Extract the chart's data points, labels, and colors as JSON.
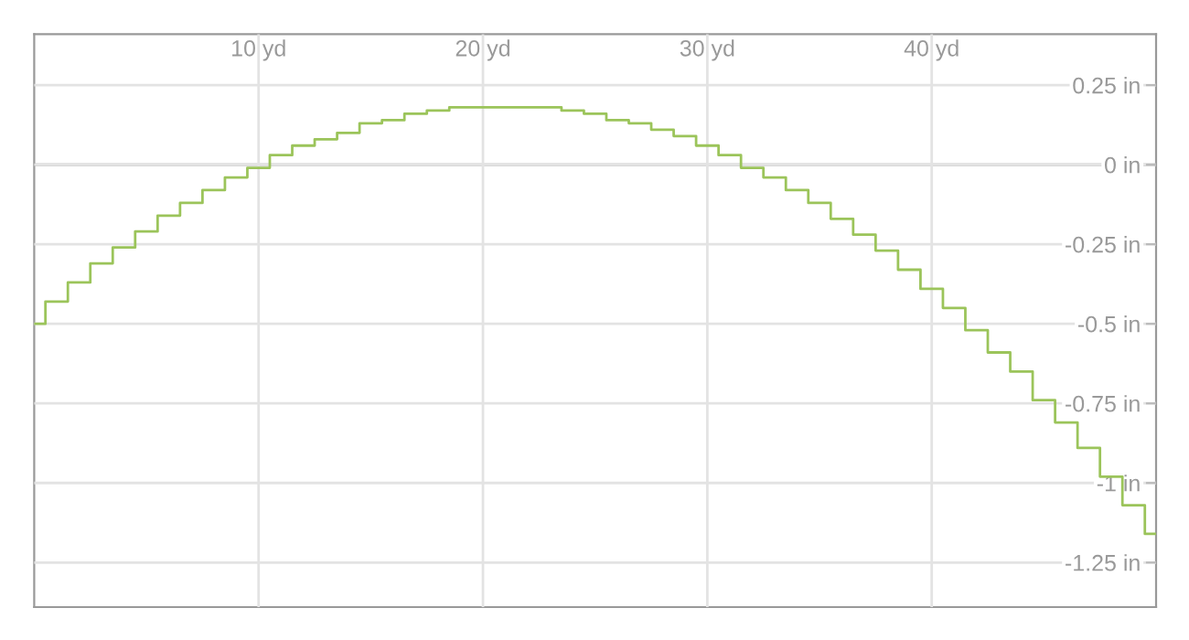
{
  "chart_data": {
    "type": "step",
    "x": [
      0,
      1,
      2,
      3,
      4,
      5,
      6,
      7,
      8,
      9,
      10,
      11,
      12,
      13,
      14,
      15,
      16,
      17,
      18,
      19,
      20,
      21,
      22,
      23,
      24,
      25,
      26,
      27,
      28,
      29,
      30,
      31,
      32,
      33,
      34,
      35,
      36,
      37,
      38,
      39,
      40,
      41,
      42,
      43,
      44,
      45,
      46,
      47,
      48,
      49,
      50
    ],
    "series": [
      {
        "color": "#9bc45a",
        "values": [
          -0.5,
          -0.43,
          -0.37,
          -0.31,
          -0.26,
          -0.21,
          -0.16,
          -0.12,
          -0.08,
          -0.04,
          -0.01,
          0.03,
          0.06,
          0.08,
          0.1,
          0.13,
          0.14,
          0.16,
          0.17,
          0.18,
          0.18,
          0.18,
          0.18,
          0.18,
          0.17,
          0.16,
          0.14,
          0.13,
          0.11,
          0.09,
          0.06,
          0.03,
          -0.01,
          -0.04,
          -0.08,
          -0.12,
          -0.17,
          -0.22,
          -0.27,
          -0.33,
          -0.39,
          -0.45,
          -0.52,
          -0.59,
          -0.65,
          -0.74,
          -0.81,
          -0.89,
          -0.98,
          -1.07,
          -1.16
        ]
      }
    ],
    "xlim": [
      0,
      50
    ],
    "xticks": [
      {
        "value": 10,
        "label": "10 yd"
      },
      {
        "value": 20,
        "label": "20 yd"
      },
      {
        "value": 30,
        "label": "30 yd"
      },
      {
        "value": 40,
        "label": "40 yd"
      }
    ],
    "ylim": [
      -1.39,
      0.41
    ],
    "yticks": [
      {
        "value": 0.25,
        "label": "0.25 in"
      },
      {
        "value": 0,
        "label": "0 in"
      },
      {
        "value": -0.25,
        "label": "-0.25 in"
      },
      {
        "value": -0.5,
        "label": "-0.5 in"
      },
      {
        "value": -0.75,
        "label": "-0.75 in"
      },
      {
        "value": -1,
        "label": "-1 in"
      },
      {
        "value": -1.25,
        "label": "-1.25 in"
      }
    ],
    "ref_lines": [
      {
        "axis": "y",
        "value": 0,
        "color": "#999999"
      }
    ],
    "grid": true,
    "line_style": "solid"
  }
}
